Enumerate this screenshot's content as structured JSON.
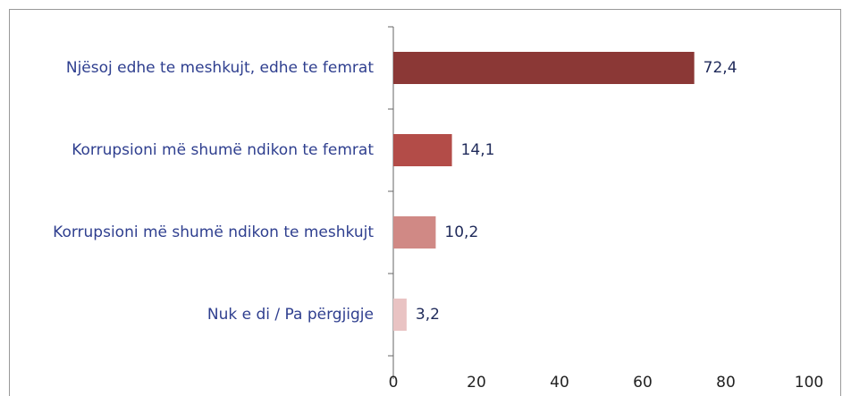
{
  "chart_data": {
    "type": "bar",
    "orientation": "horizontal",
    "categories": [
      "Një​soj edhe te meshkujt, edhe te femrat",
      "Korrupsioni më shumë ndikon te femrat",
      "Korrupsioni më shumë ndikon te meshkujt",
      "Nuk e di / Pa përgjigje"
    ],
    "values": [
      72.4,
      14.1,
      10.2,
      3.2
    ],
    "value_labels": [
      "72,4",
      "14,1",
      "10,2",
      "3,2"
    ],
    "colors": [
      "#8b3836",
      "#b34c48",
      "#d08985",
      "#e9c3c3"
    ],
    "xlim": [
      0,
      100
    ],
    "xticks": [
      0,
      20,
      40,
      60,
      80,
      100
    ],
    "grid": false
  }
}
